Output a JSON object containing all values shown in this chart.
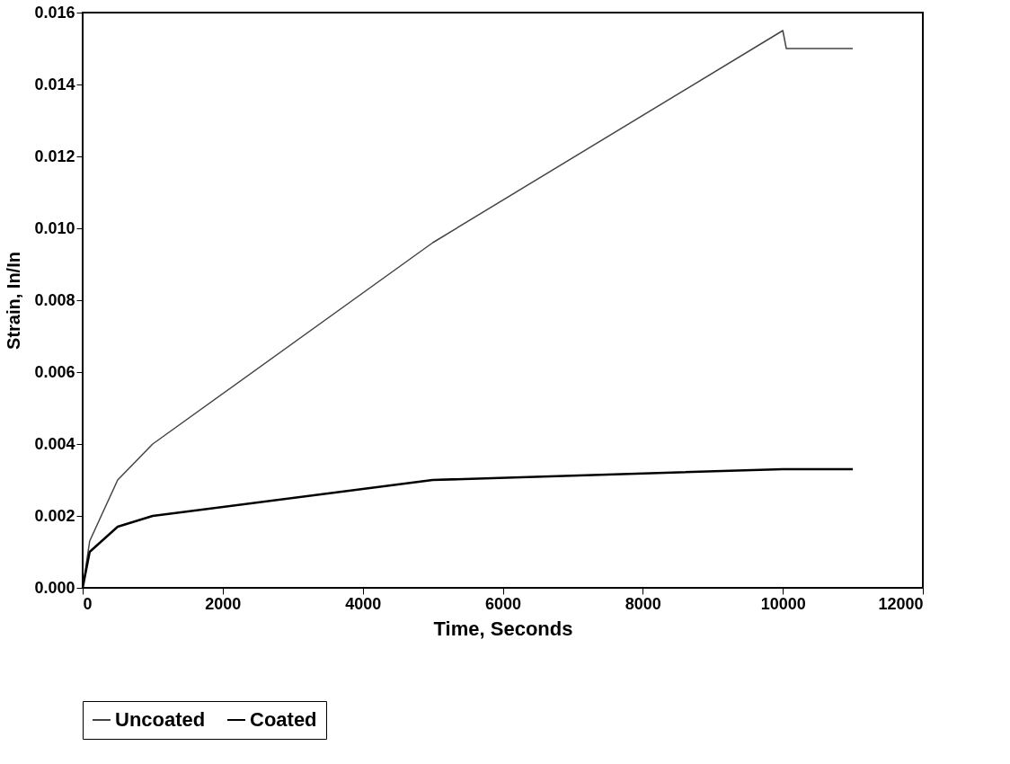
{
  "chart_data": {
    "type": "line",
    "xlabel": "Time, Seconds",
    "ylabel": "Strain, In/In",
    "xlim": [
      0,
      12000
    ],
    "xticks": [
      0,
      2000,
      4000,
      6000,
      8000,
      10000,
      12000
    ],
    "ylim": [
      0,
      0.016
    ],
    "yticks": [
      {
        "value": 0,
        "label": "0.000"
      },
      {
        "value": 0.002,
        "label": "0.002"
      },
      {
        "value": 0.004,
        "label": "0.004"
      },
      {
        "value": 0.006,
        "label": "0.006"
      },
      {
        "value": 0.008,
        "label": "0.008"
      },
      {
        "value": 0.01,
        "label": "0.010"
      },
      {
        "value": 0.012,
        "label": "0.012"
      },
      {
        "value": 0.014,
        "label": "0.014"
      },
      {
        "value": 0.016,
        "label": "0.016"
      }
    ],
    "grid": false,
    "legend": "bottom",
    "marker": "none",
    "line_style": "solid",
    "series": [
      {
        "name": "Uncoated",
        "color": "#444444",
        "x": [
          0,
          100,
          500,
          1000,
          5000,
          10000,
          10050,
          11000
        ],
        "values": [
          0,
          0.0013,
          0.003,
          0.004,
          0.0096,
          0.0155,
          0.015,
          0.015
        ]
      },
      {
        "name": "Coated",
        "color": "#000000",
        "x": [
          0,
          100,
          500,
          1000,
          5000,
          10000,
          11000
        ],
        "values": [
          0,
          0.001,
          0.0017,
          0.002,
          0.003,
          0.0033,
          0.0033
        ]
      }
    ]
  }
}
